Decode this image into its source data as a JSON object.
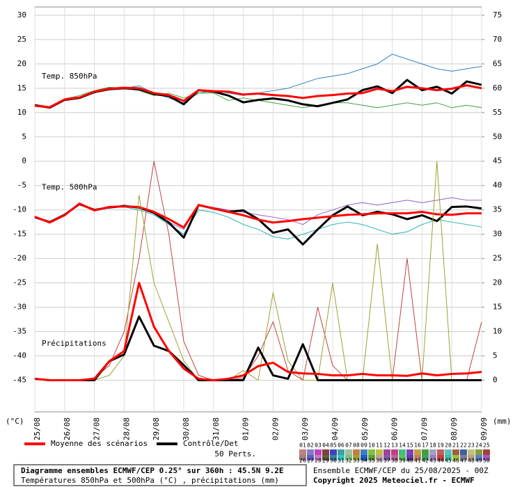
{
  "chart_data": {
    "type": "line",
    "x": [
      0,
      0.5,
      1,
      1.5,
      2,
      2.5,
      3,
      3.5,
      4,
      4.5,
      5,
      5.5,
      6,
      6.5,
      7,
      7.5,
      8,
      8.5,
      9,
      9.5,
      10,
      10.5,
      11,
      11.5,
      12,
      12.5,
      13,
      13.5,
      14,
      14.5,
      15
    ],
    "xlim": [
      0,
      15
    ],
    "xticks": [
      {
        "value": 0,
        "label": "25/08"
      },
      {
        "value": 1,
        "label": "26/08"
      },
      {
        "value": 2,
        "label": "27/08"
      },
      {
        "value": 3,
        "label": "28/08"
      },
      {
        "value": 4,
        "label": "29/08"
      },
      {
        "value": 5,
        "label": "30/08"
      },
      {
        "value": 6,
        "label": "31/08"
      },
      {
        "value": 7,
        "label": "01/09"
      },
      {
        "value": 8,
        "label": "02/09"
      },
      {
        "value": 9,
        "label": "03/09"
      },
      {
        "value": 10,
        "label": "04/09"
      },
      {
        "value": 11,
        "label": "05/09"
      },
      {
        "value": 12,
        "label": "06/09"
      },
      {
        "value": 13,
        "label": "07/09"
      },
      {
        "value": 14,
        "label": "08/09"
      },
      {
        "value": 15,
        "label": "09/09"
      }
    ],
    "ylim": [
      -51.5,
      31.7
    ],
    "yticks": [
      30,
      25,
      20,
      15,
      10,
      5,
      0,
      -5,
      -10,
      -15,
      -20,
      -25,
      -30,
      -35,
      -40,
      -45
    ],
    "y2lim": [
      -6.5,
      76.7
    ],
    "y2ticks": [
      75,
      70,
      65,
      60,
      55,
      50,
      45,
      40,
      35,
      30,
      25,
      20,
      15,
      10,
      5,
      0
    ],
    "ylabel": "(°C)",
    "y2label": "(mm)",
    "grid": true,
    "legend": [
      {
        "name": "Moyenne des scénarios",
        "color": "#ff0000"
      },
      {
        "name": "Contrôle/Det",
        "color": "#000000"
      }
    ],
    "perturbations_label": "50 Perts.",
    "perturbation_codes": [
      "01",
      "02",
      "03",
      "04",
      "05",
      "06",
      "07",
      "08",
      "09",
      "10",
      "11",
      "12",
      "13",
      "14",
      "15",
      "16",
      "17",
      "18",
      "19",
      "20",
      "21",
      "22",
      "23",
      "24",
      "25",
      "26",
      "27",
      "28",
      "29",
      "30",
      "31",
      "32",
      "33",
      "34",
      "35",
      "36",
      "37",
      "38",
      "39",
      "40",
      "41",
      "42",
      "43",
      "44",
      "45",
      "46",
      "47",
      "48",
      "49",
      "50"
    ],
    "perturbation_colors": [
      "#c08080",
      "#8080c0",
      "#c040c0",
      "#804040",
      "#4040c0",
      "#40a0a0",
      "#a0c0a0",
      "#c08040",
      "#4080c0",
      "#80c040",
      "#c0c040",
      "#a040a0",
      "#c04080",
      "#40c080",
      "#8040c0",
      "#c0a040",
      "#40a040",
      "#a0a0c0",
      "#c06060",
      "#60c0c0",
      "#a06040",
      "#4060a0",
      "#c0c080",
      "#80a040",
      "#a04040",
      "#a08080",
      "#6060c0",
      "#c080c0",
      "#606040",
      "#4080a0",
      "#40c0c0",
      "#80c080",
      "#a0a040",
      "#2060c0",
      "#60a040",
      "#c0a0a0",
      "#8060a0",
      "#c060a0",
      "#60c060",
      "#6040a0",
      "#c08060",
      "#40a060",
      "#a080c0",
      "#c04040",
      "#40c0a0",
      "#a0c040",
      "#8080a0",
      "#c0a080",
      "#6080c0",
      "#a060c0"
    ],
    "panels": [
      {
        "label": "Temp. 850hPa",
        "axis": "y",
        "mean": [
          11.4,
          11.1,
          12.7,
          13.1,
          14.3,
          14.9,
          15.1,
          15,
          14,
          13.6,
          12.4,
          14.6,
          14.4,
          14.3,
          13.7,
          13.9,
          13.6,
          13.4,
          13,
          13.4,
          13.6,
          13.9,
          14,
          14.9,
          14.4,
          15.3,
          15,
          14.6,
          14.9,
          15.6,
          15
        ],
        "control": [
          11.5,
          11,
          12.6,
          13,
          14.2,
          14.8,
          15,
          14.8,
          13.8,
          13.4,
          11.7,
          14.6,
          14.3,
          13.5,
          12.1,
          12.6,
          12.9,
          12.5,
          11.7,
          11.3,
          12,
          12.7,
          14.6,
          15.4,
          14,
          16.7,
          14.6,
          15.3,
          13.9,
          16.4,
          15.7
        ],
        "members": [
          {
            "color": "#3080c0",
            "values": [
              11.5,
              11,
              12.5,
              13,
              14,
              15,
              15,
              15.5,
              14,
              13,
              12,
              14,
              14.5,
              14,
              13.5,
              14,
              14.5,
              15,
              16,
              17,
              17.5,
              18,
              19,
              20,
              22,
              21,
              20,
              19,
              18.5,
              19,
              19.5
            ]
          },
          {
            "color": "#40a040",
            "values": [
              11.7,
              11.2,
              12.8,
              13.5,
              14.5,
              15.2,
              15,
              14.5,
              13.5,
              14,
              13,
              14,
              14,
              12.5,
              13,
              12.5,
              12,
              11.5,
              11,
              11.5,
              12,
              12,
              11.5,
              11,
              11.5,
              12,
              11.5,
              12,
              11,
              11.5,
              11
            ]
          }
        ]
      },
      {
        "label": "Temp. 500hPa",
        "axis": "y",
        "mean": [
          -11.4,
          -12.6,
          -11.1,
          -8.7,
          -10.1,
          -9.4,
          -9.3,
          -9.4,
          -10.4,
          -11.9,
          -13.6,
          -9,
          -9.7,
          -10.4,
          -11.1,
          -12,
          -12.6,
          -12.3,
          -11.9,
          -11.6,
          -11.3,
          -11,
          -10.9,
          -10.7,
          -10.7,
          -10.7,
          -10.4,
          -10.9,
          -11,
          -10.7,
          -10.7
        ],
        "control": [
          -11.5,
          -12.5,
          -11,
          -8.8,
          -10,
          -9.5,
          -9.2,
          -9.5,
          -10.6,
          -12.6,
          -15.7,
          -9,
          -9.7,
          -10.4,
          -10.1,
          -11.9,
          -14.7,
          -14,
          -17.1,
          -14,
          -11.1,
          -9.3,
          -11.1,
          -10.4,
          -10.9,
          -11.9,
          -11.1,
          -12.3,
          -9.4,
          -9.3,
          -9.7
        ],
        "members": [
          {
            "color": "#9060c0",
            "values": [
              -11.5,
              -12.5,
              -11,
              -9,
              -10,
              -9.5,
              -9,
              -9.5,
              -10.5,
              -12.5,
              -14,
              -9,
              -9.5,
              -10,
              -10.5,
              -11,
              -11.5,
              -12,
              -13,
              -11,
              -10,
              -9,
              -8.5,
              -9,
              -8.5,
              -8,
              -8.5,
              -8,
              -7.5,
              -8,
              -8
            ]
          },
          {
            "color": "#20b0b0",
            "values": [
              -11.3,
              -12.7,
              -11.2,
              -8.8,
              -10.2,
              -9.3,
              -9.4,
              -10,
              -11,
              -13,
              -15,
              -10,
              -10.5,
              -11.5,
              -13,
              -14,
              -15.5,
              -16,
              -15,
              -14,
              -13,
              -12.5,
              -13,
              -14,
              -15,
              -14.5,
              -13,
              -12,
              -12.5,
              -13,
              -13.5
            ]
          }
        ]
      },
      {
        "label": "Précipitations",
        "axis": "y2",
        "mean": [
          0.3,
          0,
          0,
          0,
          0.3,
          3.9,
          6,
          20,
          11,
          6,
          2.4,
          0.3,
          0,
          0.3,
          1,
          2.9,
          3.6,
          1.7,
          1.4,
          1.3,
          1,
          1,
          1.3,
          1,
          1,
          0.9,
          1.4,
          1,
          1.3,
          1.4,
          1.7
        ],
        "control": [
          0.3,
          0,
          0,
          0,
          0,
          3.9,
          5.3,
          13.1,
          7.1,
          6,
          3.1,
          0,
          0,
          0,
          0,
          6.7,
          1,
          0.3,
          7.4,
          0,
          0,
          0,
          0,
          0,
          0,
          0,
          0,
          0,
          0,
          0,
          0
        ],
        "members": [
          {
            "color": "#c04040",
            "values": [
              0.3,
              0,
              0,
              0,
              0.5,
              3,
              10,
              25,
              45,
              30,
              8,
              1,
              0,
              0,
              0.5,
              5,
              12,
              2,
              0,
              15,
              3,
              0,
              0,
              0,
              0,
              25,
              0,
              0,
              0,
              0,
              12
            ]
          },
          {
            "color": "#a0a030",
            "values": [
              0.2,
              0,
              0,
              0,
              0,
              1,
              5,
              38,
              20,
              12,
              4,
              0,
              0,
              0,
              2,
              0,
              18,
              4,
              0,
              0,
              20,
              0,
              0,
              28,
              0,
              0,
              0,
              45,
              0,
              0,
              0
            ]
          }
        ]
      }
    ],
    "footer": {
      "title": "Diagramme ensembles ECMWF/CEP 0.25° sur 360h : 45.5N 9.2E",
      "subtitle": "Températures 850hPa et 500hPa (°C) , précipitations (mm)",
      "run": "Ensemble ECMWF/CEP du 25/08/2025 - 00Z",
      "copyright": "Copyright 2025 Meteociel.fr - ECMWF"
    }
  }
}
